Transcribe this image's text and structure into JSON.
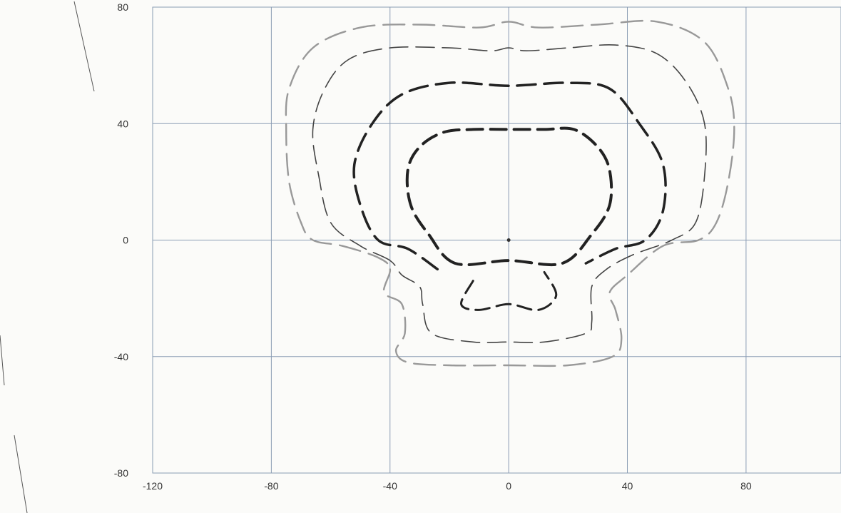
{
  "title_fragment": "",
  "chart_data": {
    "type": "line",
    "title": "",
    "xlabel": "",
    "ylabel": "",
    "xlim": [
      -120,
      112
    ],
    "ylim": [
      -80,
      80
    ],
    "x_ticks": [
      -120,
      -80,
      -40,
      0,
      40,
      80
    ],
    "y_ticks": [
      80,
      40,
      0,
      -40,
      -80
    ],
    "grid": true,
    "center_point": [
      0,
      0
    ],
    "series": [
      {
        "color": "#222222",
        "points": [
          [
            -18,
            -8
          ],
          [
            -27,
            2
          ],
          [
            -33,
            12
          ],
          [
            -34,
            24
          ],
          [
            -30,
            32
          ],
          [
            -22,
            37
          ],
          [
            -12,
            38
          ],
          [
            0,
            38
          ],
          [
            12,
            38
          ],
          [
            22,
            38
          ],
          [
            30,
            32
          ],
          [
            34,
            24
          ],
          [
            34,
            12
          ],
          [
            28,
            2
          ],
          [
            18,
            -8
          ],
          [
            0,
            -7
          ]
        ],
        "closed": true
      },
      {
        "color": "#222222",
        "points": [
          [
            -24,
            -10
          ],
          [
            -34,
            -3
          ],
          [
            -44,
            0
          ],
          [
            -50,
            12
          ],
          [
            -52,
            26
          ],
          [
            -46,
            40
          ],
          [
            -36,
            50
          ],
          [
            -20,
            54
          ],
          [
            0,
            53
          ],
          [
            20,
            54
          ],
          [
            34,
            52
          ],
          [
            44,
            40
          ],
          [
            52,
            26
          ],
          [
            52,
            10
          ],
          [
            46,
            0
          ],
          [
            36,
            -3
          ],
          [
            26,
            -8
          ]
        ],
        "closed": false
      },
      {
        "color": "#222222",
        "points": [
          [
            -12,
            -14
          ],
          [
            -16,
            -22
          ],
          [
            -10,
            -24
          ],
          [
            0,
            -22
          ],
          [
            10,
            -24
          ],
          [
            16,
            -19
          ],
          [
            12,
            -11
          ]
        ],
        "closed": false
      },
      {
        "color": "#444444",
        "points": [
          [
            -40,
            -7
          ],
          [
            -50,
            -2
          ],
          [
            -60,
            6
          ],
          [
            -64,
            22
          ],
          [
            -66,
            38
          ],
          [
            -62,
            52
          ],
          [
            -54,
            62
          ],
          [
            -40,
            66
          ],
          [
            -20,
            66
          ],
          [
            -6,
            65
          ],
          [
            0,
            66
          ],
          [
            6,
            65
          ],
          [
            20,
            66
          ],
          [
            36,
            67
          ],
          [
            50,
            64
          ],
          [
            60,
            54
          ],
          [
            66,
            40
          ],
          [
            66,
            22
          ],
          [
            63,
            6
          ],
          [
            55,
            0
          ],
          [
            42,
            -5
          ],
          [
            33,
            -10
          ],
          [
            28,
            -16
          ],
          [
            28,
            -28
          ],
          [
            26,
            -32
          ],
          [
            12,
            -35
          ],
          [
            0,
            -35
          ],
          [
            -12,
            -35
          ],
          [
            -26,
            -32
          ],
          [
            -29,
            -22
          ],
          [
            -30,
            -16
          ],
          [
            -36,
            -12
          ]
        ],
        "closed": true
      },
      {
        "color": "#999999",
        "points": [
          [
            -40,
            -10
          ],
          [
            -42,
            -18
          ],
          [
            -36,
            -22
          ],
          [
            -35,
            -32
          ],
          [
            -38,
            -38
          ],
          [
            -34,
            -42
          ],
          [
            -20,
            -43
          ],
          [
            0,
            -43
          ],
          [
            20,
            -43
          ],
          [
            35,
            -40
          ],
          [
            38,
            -34
          ],
          [
            36,
            -24
          ],
          [
            34,
            -18
          ],
          [
            40,
            -12
          ],
          [
            52,
            -2
          ],
          [
            64,
            0
          ],
          [
            70,
            6
          ],
          [
            74,
            20
          ],
          [
            76,
            38
          ],
          [
            74,
            52
          ],
          [
            66,
            68
          ],
          [
            50,
            75
          ],
          [
            30,
            74
          ],
          [
            10,
            73
          ],
          [
            0,
            75
          ],
          [
            -10,
            73
          ],
          [
            -30,
            74
          ],
          [
            -50,
            73
          ],
          [
            -66,
            66
          ],
          [
            -74,
            52
          ],
          [
            -75,
            38
          ],
          [
            -74,
            20
          ],
          [
            -70,
            6
          ],
          [
            -66,
            0
          ],
          [
            -56,
            -2
          ],
          [
            -44,
            -6
          ]
        ],
        "closed": true
      }
    ]
  }
}
